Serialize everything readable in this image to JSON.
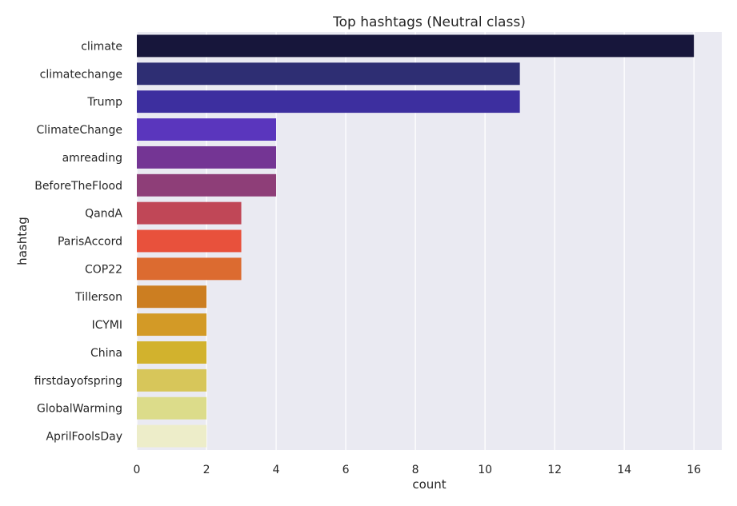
{
  "chart_data": {
    "type": "bar",
    "orientation": "horizontal",
    "title": "Top hashtags (Neutral class)",
    "xlabel": "count",
    "ylabel": "hashtag",
    "xlim": [
      0,
      16.8
    ],
    "xticks": [
      0,
      2,
      4,
      6,
      8,
      10,
      12,
      14,
      16
    ],
    "grid": true,
    "categories": [
      "climate",
      "climatechange",
      "Trump",
      "ClimateChange",
      "amreading",
      "BeforeTheFlood",
      "QandA",
      "ParisAccord",
      "COP22",
      "Tillerson",
      "ICYMI",
      "China",
      "firstdayofspring",
      "GlobalWarming",
      "AprilFoolsDay"
    ],
    "values": [
      16,
      11,
      11,
      4,
      4,
      4,
      3,
      3,
      3,
      2,
      2,
      2,
      2,
      2,
      2
    ],
    "colors": [
      "#17163b",
      "#2e2e73",
      "#3d2f9f",
      "#5a36bd",
      "#743594",
      "#8e3e78",
      "#c04757",
      "#e8513c",
      "#dc6b30",
      "#cc7e21",
      "#d39a26",
      "#d2b22d",
      "#d7c65a",
      "#dcdc8a",
      "#ededc9"
    ],
    "background": "#eaeaf2",
    "grid_color": "#ffffff"
  }
}
